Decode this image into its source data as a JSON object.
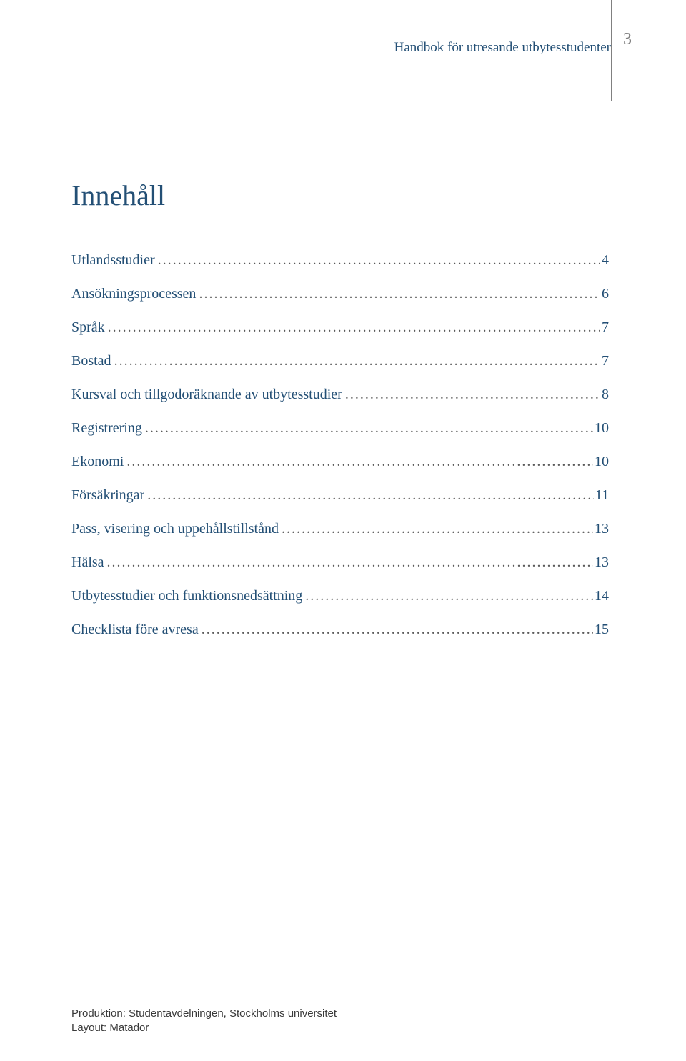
{
  "colors": {
    "blue": "#234f75",
    "text": "#3a3a3a",
    "gray": "#808080",
    "header_text": "#234f75",
    "divider": "#808080",
    "leader": "#5a5a5a"
  },
  "typography": {
    "header_fontsize": 19,
    "pagenum_fontsize": 24,
    "h1_fontsize": 40,
    "toc_fontsize": 20,
    "footer_fontsize": 15
  },
  "header": {
    "title": "Handbok för utresande utbytesstudenter",
    "page_number": "3"
  },
  "h1": "Innehåll",
  "toc": [
    {
      "label": "Utlandsstudier",
      "page": "4"
    },
    {
      "label": "Ansökningsprocessen",
      "page": "6"
    },
    {
      "label": "Språk",
      "page": "7"
    },
    {
      "label": "Bostad",
      "page": "7"
    },
    {
      "label": "Kursval och tillgodoräknande av utbytesstudier",
      "page": "8"
    },
    {
      "label": "Registrering",
      "page": "10"
    },
    {
      "label": "Ekonomi",
      "page": "10"
    },
    {
      "label": "Försäkringar",
      "page": "11"
    },
    {
      "label": "Pass, visering och uppehållstillstånd",
      "page": "13"
    },
    {
      "label": "Hälsa",
      "page": "13"
    },
    {
      "label": "Utbytesstudier och funktionsnedsättning",
      "page": "14"
    },
    {
      "label": "Checklista före avresa",
      "page": "15"
    }
  ],
  "footer": {
    "line1": "Produktion: Studentavdelningen, Stockholms universitet",
    "line2": "Layout: Matador"
  }
}
